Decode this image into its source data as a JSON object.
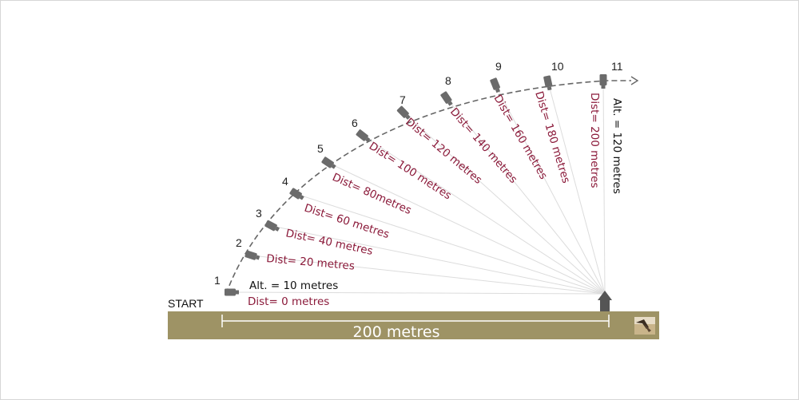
{
  "start_label": "START",
  "ground_distance_label": "200 metres",
  "altitude_start_label": "Alt. = 10 metres",
  "altitude_top_label": "Alt. = 120 metres",
  "positions": [
    {
      "num": "1",
      "dist": "Dist= 0 metres"
    },
    {
      "num": "2",
      "dist": "Dist= 20 metres"
    },
    {
      "num": "3",
      "dist": "Dist= 40 metres"
    },
    {
      "num": "4",
      "dist": "Dist= 60 metres"
    },
    {
      "num": "5",
      "dist": "Dist= 80metres"
    },
    {
      "num": "6",
      "dist": "Dist= 100 metres"
    },
    {
      "num": "7",
      "dist": "Dist= 120 metres"
    },
    {
      "num": "8",
      "dist": "Dist= 140 metres"
    },
    {
      "num": "9",
      "dist": "Dist= 160 metres"
    },
    {
      "num": "10",
      "dist": "Dist= 180 metres"
    },
    {
      "num": "11",
      "dist": "Dist= 200 metres"
    }
  ],
  "colors": {
    "ground": "#9e9365",
    "distance_text": "#8b1a3a",
    "camera": "#6b6b6b",
    "flight_path": "#666666"
  }
}
